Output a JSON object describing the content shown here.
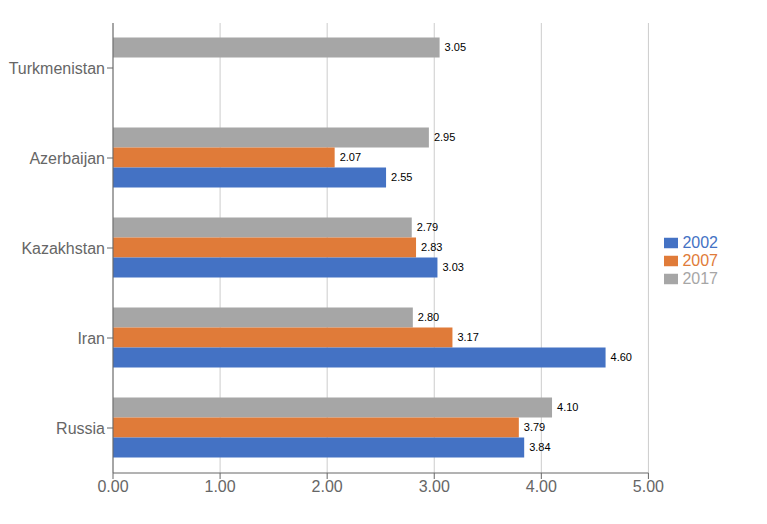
{
  "chart_data": {
    "type": "bar",
    "orientation": "horizontal",
    "categories": [
      "Russia",
      "Iran",
      "Kazakhstan",
      "Azerbaijan",
      "Turkmenistan"
    ],
    "series": [
      {
        "name": "2017",
        "color": "#a6a6a6",
        "values": [
          4.1,
          2.8,
          2.79,
          2.95,
          3.05
        ],
        "value_labels": [
          "4.10",
          "2.80",
          "2.79",
          "2.95",
          "3.05"
        ]
      },
      {
        "name": "2007",
        "color": "#e07b39",
        "values": [
          3.79,
          3.17,
          2.83,
          2.07,
          null
        ],
        "value_labels": [
          "3.79",
          "3.17",
          "2.83",
          "2.07",
          null
        ]
      },
      {
        "name": "2002",
        "color": "#4472c4",
        "values": [
          3.84,
          4.6,
          3.03,
          2.55,
          null
        ],
        "value_labels": [
          "3.84",
          "4.60",
          "3.03",
          "2.55",
          null
        ]
      }
    ],
    "xlim": [
      0,
      5.0
    ],
    "xticks": [
      {
        "value": 0,
        "label": "0.00"
      },
      {
        "value": 1,
        "label": "1.00"
      },
      {
        "value": 2,
        "label": "2.00"
      },
      {
        "value": 3,
        "label": "3.00"
      },
      {
        "value": 4,
        "label": "4.00"
      },
      {
        "value": 5,
        "label": "5.00"
      }
    ],
    "grid": true,
    "legend": "right",
    "data_labels": true
  }
}
